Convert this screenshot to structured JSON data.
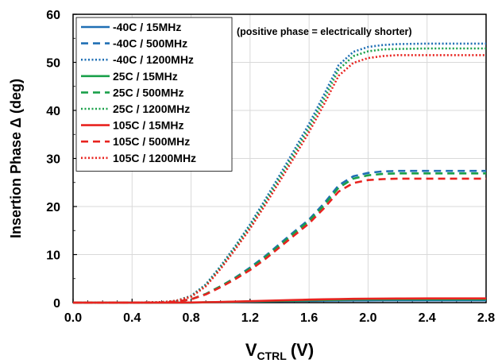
{
  "chart_data": {
    "type": "line",
    "title": "",
    "xlabel_main": "V",
    "xlabel_sub": "CTRL",
    "xlabel_unit": "(V)",
    "ylabel": "Insertion Phase Δ (deg)",
    "annotation": "(positive phase = electrically shorter)",
    "xlim": [
      0.0,
      2.8
    ],
    "ylim": [
      0,
      60
    ],
    "x_ticks": [
      "0.0",
      "0.4",
      "0.8",
      "1.2",
      "1.6",
      "2.0",
      "2.4",
      "2.8"
    ],
    "y_ticks": [
      "0",
      "10",
      "20",
      "30",
      "40",
      "50",
      "60"
    ],
    "grid": true,
    "legend_position": "top-left",
    "colors": {
      "-40C": "#1f6fb4",
      "25C": "#1aa04a",
      "105C": "#e8231f"
    },
    "x": [
      0.0,
      0.2,
      0.4,
      0.6,
      0.7,
      0.8,
      0.9,
      1.0,
      1.1,
      1.2,
      1.3,
      1.4,
      1.5,
      1.6,
      1.7,
      1.8,
      1.9,
      2.0,
      2.1,
      2.2,
      2.4,
      2.6,
      2.8
    ],
    "series": [
      {
        "name": "-40C /  15MHz",
        "color": "#1f6fb4",
        "dash": "solid",
        "values": [
          0,
          0,
          0,
          0,
          0,
          0.02,
          0.05,
          0.1,
          0.15,
          0.2,
          0.25,
          0.3,
          0.33,
          0.36,
          0.39,
          0.42,
          0.44,
          0.45,
          0.46,
          0.46,
          0.47,
          0.47,
          0.47
        ]
      },
      {
        "name": "-40C /  500MHz",
        "color": "#1f6fb4",
        "dash": "dashed",
        "values": [
          0,
          0,
          0,
          0.05,
          0.2,
          0.7,
          1.8,
          3.4,
          5.2,
          7.3,
          9.6,
          12.2,
          14.8,
          17.3,
          20.6,
          24.4,
          26.3,
          27.0,
          27.3,
          27.4,
          27.4,
          27.4,
          27.4
        ]
      },
      {
        "name": "-40C /  1200MHz",
        "color": "#1f6fb4",
        "dash": "dotted",
        "values": [
          0,
          0,
          0,
          0.1,
          0.4,
          1.4,
          3.8,
          7.6,
          11.8,
          16.3,
          21.3,
          26.5,
          31.8,
          37.2,
          43.2,
          49.4,
          52.2,
          53.2,
          53.6,
          53.8,
          53.9,
          53.9,
          53.9
        ]
      },
      {
        "name": "25C /  15MHz",
        "color": "#1aa04a",
        "dash": "solid",
        "values": [
          0,
          0,
          0,
          0,
          0,
          0.02,
          0.06,
          0.12,
          0.18,
          0.24,
          0.3,
          0.36,
          0.42,
          0.48,
          0.54,
          0.6,
          0.64,
          0.67,
          0.68,
          0.69,
          0.7,
          0.7,
          0.7
        ]
      },
      {
        "name": "25C /  500MHz",
        "color": "#1aa04a",
        "dash": "dashed",
        "values": [
          0,
          0,
          0,
          0.05,
          0.2,
          0.7,
          1.8,
          3.4,
          5.1,
          7.1,
          9.4,
          11.9,
          14.5,
          17.0,
          20.2,
          23.9,
          25.8,
          26.5,
          26.8,
          26.9,
          26.9,
          26.9,
          26.9
        ]
      },
      {
        "name": "25C /  1200MHz",
        "color": "#1aa04a",
        "dash": "dotted",
        "values": [
          0,
          0,
          0,
          0.1,
          0.4,
          1.3,
          3.6,
          7.3,
          11.5,
          15.9,
          20.8,
          25.9,
          31.1,
          36.4,
          42.3,
          48.5,
          51.3,
          52.3,
          52.7,
          52.8,
          52.9,
          52.9,
          52.9
        ]
      },
      {
        "name": "105C /  15MHz",
        "color": "#e8231f",
        "dash": "solid",
        "values": [
          0,
          0,
          0,
          0,
          0,
          0.03,
          0.08,
          0.14,
          0.22,
          0.3,
          0.38,
          0.46,
          0.54,
          0.62,
          0.69,
          0.75,
          0.8,
          0.83,
          0.85,
          0.86,
          0.87,
          0.87,
          0.87
        ]
      },
      {
        "name": "105C /  500MHz",
        "color": "#e8231f",
        "dash": "dashed",
        "values": [
          0,
          0,
          0,
          0.05,
          0.2,
          0.7,
          1.7,
          3.2,
          4.9,
          6.8,
          9.0,
          11.5,
          14.0,
          16.5,
          19.6,
          23.1,
          24.9,
          25.5,
          25.7,
          25.8,
          25.8,
          25.8,
          25.8
        ]
      },
      {
        "name": "105C /  1200MHz",
        "color": "#e8231f",
        "dash": "dotted",
        "values": [
          0,
          0,
          0,
          0.1,
          0.4,
          1.2,
          3.4,
          7.0,
          11.1,
          15.4,
          20.2,
          25.2,
          30.3,
          35.5,
          41.2,
          47.2,
          49.9,
          50.9,
          51.3,
          51.5,
          51.5,
          51.5,
          51.5
        ]
      }
    ]
  }
}
